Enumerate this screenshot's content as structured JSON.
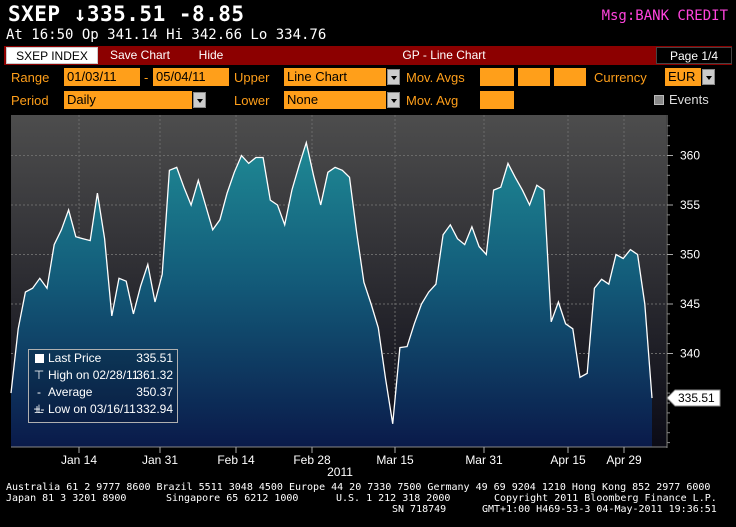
{
  "header": {
    "ticker_line": "SXEP ↓335.51  -8.85",
    "msg": "Msg:BANK CREDIT",
    "quote_line": "At 16:50  Op 341.14 Hi 342.66 Lo 334.76"
  },
  "toolbar": {
    "index_label": "SXEP INDEX",
    "save_label": "Save Chart",
    "hide_label": "Hide",
    "title": "GP - Line Chart",
    "page": "Page 1/4"
  },
  "controls": {
    "range_label": "Range",
    "range_start": "01/03/11",
    "range_sep": "-",
    "range_end": "05/04/11",
    "upper_label": "Upper",
    "upper_value": "Line Chart",
    "mov_avgs_label": "Mov. Avgs",
    "currency_label": "Currency",
    "currency_value": "EUR",
    "period_label": "Period",
    "period_value": "Daily",
    "lower_label": "Lower",
    "lower_value": "None",
    "mov_avg_label": "Mov. Avg",
    "events_label": "Events"
  },
  "legend": {
    "last_label": "Last Price",
    "last_value": "335.51",
    "high_label": "High on 02/28/11",
    "high_value": "361.32",
    "avg_label": "Average",
    "avg_value": "350.37",
    "low_label": "Low on 03/16/11",
    "low_value": "332.94"
  },
  "footer": {
    "line1": "Australia 61 2 9777 8600 Brazil 5511 3048 4500 Europe 44 20 7330 7500 Germany 49 69 9204 1210 Hong Kong 852 2977 6000",
    "line2_a": "Japan 81 3 3201 8900",
    "line2_b": "Singapore 65 6212 1000",
    "line2_c": "U.S. 1 212 318 2000",
    "line2_d": "Copyright 2011 Bloomberg Finance L.P.",
    "line3_a": "SN 718749",
    "line3_b": "GMT+1:00 H469-53-3 04-May-2011 19:36:51"
  },
  "colors": {
    "accent_orange": "#ff9f1a",
    "toolbar_red": "#8c0000",
    "msg_magenta": "#ff44dd",
    "chart_top": "#1f8a95",
    "chart_bottom": "#0a1a4a",
    "plot_bg_top": "#4a4a4a",
    "plot_bg_bottom": "#0a0a14"
  },
  "chart_data": {
    "type": "area",
    "xlabel": "2011",
    "x_ticks": [
      "Jan 14",
      "Jan 31",
      "Feb 14",
      "Feb 28",
      "Mar 15",
      "Mar 31",
      "Apr 15",
      "Apr 29"
    ],
    "y_ticks": [
      340,
      345,
      350,
      355,
      360
    ],
    "ylim": [
      329.5,
      364.2
    ],
    "last_price_tag": "335.51",
    "series": [
      {
        "values": [
          336.0,
          342.5,
          346.2,
          346.6,
          347.6,
          346.6,
          351.0,
          352.5,
          354.5,
          351.8,
          351.6,
          351.4,
          356.2,
          351.6,
          343.8,
          347.6,
          347.3,
          344.0,
          346.8,
          349.0,
          345.2,
          348.0,
          358.5,
          358.8,
          356.8,
          355.0,
          357.5,
          355.0,
          352.5,
          353.5,
          356.2,
          358.3,
          360.0,
          359.2,
          359.8,
          359.8,
          355.5,
          355.0,
          353.0,
          356.5,
          359.0,
          361.3,
          358.0,
          355.0,
          358.3,
          358.8,
          358.5,
          357.8,
          352.2,
          347.2,
          345.0,
          342.6,
          337.5,
          332.9,
          340.6,
          340.7,
          343.0,
          345.0,
          346.2,
          347.0,
          352.0,
          353.0,
          351.6,
          351.0,
          352.8,
          350.8,
          350.0,
          356.5,
          356.8,
          359.2,
          357.8,
          356.5,
          355.0,
          357.0,
          356.5,
          343.2,
          345.2,
          343.0,
          342.5,
          337.6,
          338.0,
          346.6,
          347.5,
          347.0,
          350.0,
          349.6,
          350.5,
          350.0,
          345.0,
          335.5
        ]
      }
    ]
  }
}
